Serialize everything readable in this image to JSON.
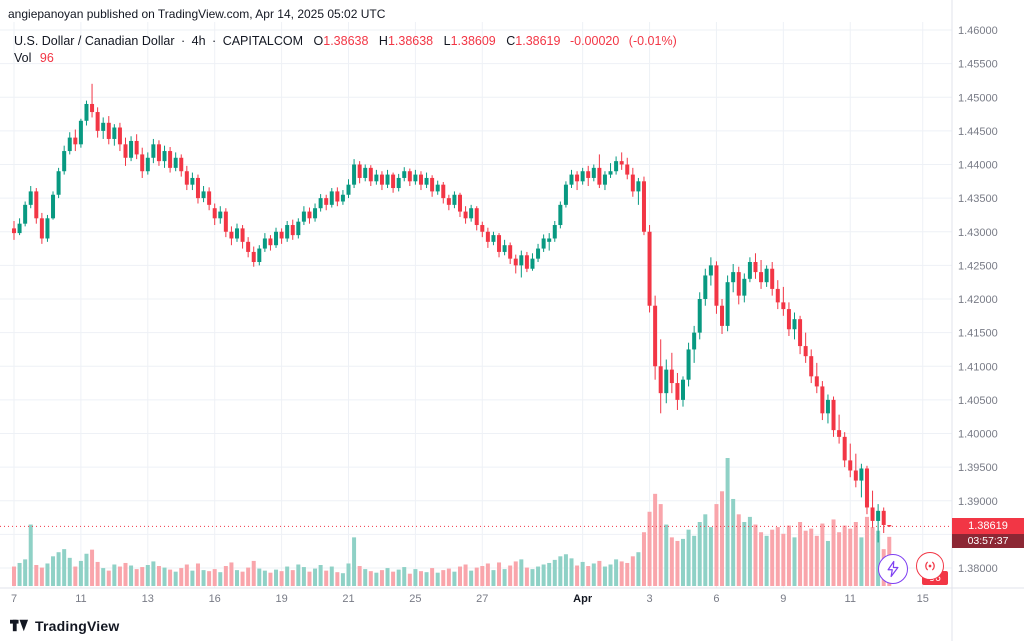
{
  "attribution": {
    "text": "angiepanoyan published on TradingView.com, Apr 14, 2025 05:02 UTC"
  },
  "header": {
    "title": "U.S. Dollar / Canadian Dollar",
    "separator": "·",
    "interval": "4h",
    "exchange": "CAPITALCOM",
    "ohlc": [
      {
        "label": "O",
        "value": "1.38638"
      },
      {
        "label": "H",
        "value": "1.38638"
      },
      {
        "label": "L",
        "value": "1.38609"
      },
      {
        "label": "C",
        "value": "1.38619"
      }
    ],
    "change": "-0.00020",
    "change_pct": "(-0.01%)",
    "vol_label": "Vol",
    "vol_value": "96"
  },
  "price_axis": {
    "last_price": "1.38619",
    "countdown": "03:57:37"
  },
  "overlay": {
    "vol_badge": "96"
  },
  "footer": {
    "brand": "TradingView"
  },
  "colors": {
    "up": "#089981",
    "down": "#f23645",
    "vol_up": "#8fd1c6",
    "vol_down": "#f9a5ab",
    "grid": "#eef1f6",
    "axis_line": "#e0e3eb",
    "axis_text": "#787b86",
    "text": "#131722",
    "badge_price_bg": "#f23645",
    "badge_countdown_bg": "#8c2734",
    "badge_vol_bg": "#f23645",
    "accent_purple": "#7e3ff2"
  },
  "chart_data": {
    "type": "candlestick",
    "symbol": "USDCAD",
    "title": "U.S. Dollar / Canadian Dollar",
    "interval": "4h",
    "exchange": "CAPITALCOM",
    "legend_position": "none",
    "grid": true,
    "price_range": [
      1.38,
      1.46
    ],
    "last_price": 1.38619,
    "last_volume": 96,
    "price_ticks": [
      "1.46000",
      "1.45500",
      "1.45000",
      "1.44500",
      "1.44000",
      "1.43500",
      "1.43000",
      "1.42500",
      "1.42000",
      "1.41500",
      "1.41000",
      "1.40500",
      "1.40000",
      "1.39500",
      "1.39000",
      "1.38500",
      "1.38000"
    ],
    "x_labels": [
      {
        "text": "7",
        "i": 0,
        "major": false
      },
      {
        "text": "11",
        "i": 12,
        "major": false
      },
      {
        "text": "13",
        "i": 24,
        "major": false
      },
      {
        "text": "16",
        "i": 36,
        "major": false
      },
      {
        "text": "19",
        "i": 48,
        "major": false
      },
      {
        "text": "21",
        "i": 60,
        "major": false
      },
      {
        "text": "25",
        "i": 72,
        "major": false
      },
      {
        "text": "27",
        "i": 84,
        "major": false
      },
      {
        "text": "Apr",
        "i": 102,
        "major": true
      },
      {
        "text": "3",
        "i": 114,
        "major": false
      },
      {
        "text": "6",
        "i": 126,
        "major": false
      },
      {
        "text": "9",
        "i": 138,
        "major": false
      },
      {
        "text": "11",
        "i": 150,
        "major": false
      },
      {
        "text": "15",
        "i": 163,
        "major": false
      }
    ],
    "candles": [
      [
        1.4305,
        1.4316,
        1.4288,
        1.4298,
        38
      ],
      [
        1.4298,
        1.432,
        1.4295,
        1.4312,
        45
      ],
      [
        1.4312,
        1.4345,
        1.4308,
        1.434,
        52
      ],
      [
        1.434,
        1.4368,
        1.4335,
        1.436,
        120
      ],
      [
        1.436,
        1.4365,
        1.4312,
        1.432,
        41
      ],
      [
        1.432,
        1.4328,
        1.4282,
        1.429,
        36
      ],
      [
        1.429,
        1.4325,
        1.4285,
        1.432,
        44
      ],
      [
        1.432,
        1.436,
        1.4318,
        1.4355,
        58
      ],
      [
        1.4355,
        1.4395,
        1.435,
        1.439,
        66
      ],
      [
        1.439,
        1.4428,
        1.4385,
        1.442,
        72
      ],
      [
        1.442,
        1.4448,
        1.4415,
        1.444,
        55
      ],
      [
        1.444,
        1.4452,
        1.442,
        1.443,
        38
      ],
      [
        1.443,
        1.4468,
        1.4425,
        1.4465,
        49
      ],
      [
        1.4465,
        1.4495,
        1.4458,
        1.449,
        63
      ],
      [
        1.449,
        1.452,
        1.447,
        1.4478,
        71
      ],
      [
        1.4478,
        1.4485,
        1.444,
        1.445,
        47
      ],
      [
        1.445,
        1.447,
        1.4438,
        1.4462,
        35
      ],
      [
        1.4462,
        1.4472,
        1.443,
        1.4438,
        30
      ],
      [
        1.4438,
        1.446,
        1.4428,
        1.4455,
        42
      ],
      [
        1.4455,
        1.4462,
        1.442,
        1.443,
        38
      ],
      [
        1.443,
        1.444,
        1.4398,
        1.441,
        45
      ],
      [
        1.441,
        1.4442,
        1.4405,
        1.4435,
        40
      ],
      [
        1.4435,
        1.4445,
        1.4408,
        1.4415,
        33
      ],
      [
        1.4415,
        1.4425,
        1.438,
        1.439,
        37
      ],
      [
        1.439,
        1.4418,
        1.4385,
        1.441,
        41
      ],
      [
        1.441,
        1.4438,
        1.4402,
        1.443,
        48
      ],
      [
        1.443,
        1.4436,
        1.4398,
        1.4405,
        39
      ],
      [
        1.4405,
        1.4428,
        1.4395,
        1.442,
        36
      ],
      [
        1.442,
        1.4426,
        1.4388,
        1.4395,
        32
      ],
      [
        1.4395,
        1.4418,
        1.439,
        1.441,
        28
      ],
      [
        1.441,
        1.4415,
        1.4382,
        1.439,
        35
      ],
      [
        1.439,
        1.4398,
        1.4362,
        1.437,
        42
      ],
      [
        1.437,
        1.4388,
        1.4362,
        1.438,
        30
      ],
      [
        1.438,
        1.4385,
        1.4342,
        1.435,
        44
      ],
      [
        1.435,
        1.4368,
        1.4344,
        1.436,
        31
      ],
      [
        1.436,
        1.4366,
        1.4332,
        1.434,
        29
      ],
      [
        1.4335,
        1.4342,
        1.431,
        1.432,
        33
      ],
      [
        1.432,
        1.4338,
        1.4312,
        1.433,
        27
      ],
      [
        1.433,
        1.4335,
        1.4292,
        1.43,
        39
      ],
      [
        1.43,
        1.4308,
        1.428,
        1.429,
        46
      ],
      [
        1.429,
        1.4312,
        1.4285,
        1.4305,
        31
      ],
      [
        1.4305,
        1.431,
        1.4275,
        1.4285,
        28
      ],
      [
        1.4285,
        1.4292,
        1.4262,
        1.427,
        36
      ],
      [
        1.427,
        1.4278,
        1.4248,
        1.4255,
        49
      ],
      [
        1.4255,
        1.428,
        1.425,
        1.4275,
        34
      ],
      [
        1.4275,
        1.4298,
        1.427,
        1.429,
        30
      ],
      [
        1.429,
        1.4295,
        1.4272,
        1.428,
        26
      ],
      [
        1.428,
        1.4306,
        1.4276,
        1.43,
        32
      ],
      [
        1.43,
        1.4305,
        1.4282,
        1.429,
        29
      ],
      [
        1.429,
        1.4316,
        1.4285,
        1.431,
        38
      ],
      [
        1.431,
        1.4318,
        1.4288,
        1.4295,
        31
      ],
      [
        1.4295,
        1.432,
        1.429,
        1.4315,
        42
      ],
      [
        1.4315,
        1.4338,
        1.431,
        1.433,
        37
      ],
      [
        1.433,
        1.4336,
        1.4312,
        1.432,
        28
      ],
      [
        1.432,
        1.4342,
        1.4315,
        1.4335,
        34
      ],
      [
        1.4335,
        1.4356,
        1.433,
        1.435,
        41
      ],
      [
        1.435,
        1.4355,
        1.4332,
        1.434,
        30
      ],
      [
        1.434,
        1.4365,
        1.4336,
        1.436,
        38
      ],
      [
        1.436,
        1.4366,
        1.4338,
        1.4345,
        27
      ],
      [
        1.4345,
        1.4362,
        1.434,
        1.4355,
        25
      ],
      [
        1.4355,
        1.4378,
        1.435,
        1.437,
        44
      ],
      [
        1.437,
        1.4408,
        1.4365,
        1.44,
        95
      ],
      [
        1.44,
        1.4405,
        1.4372,
        1.438,
        39
      ],
      [
        1.438,
        1.44,
        1.4375,
        1.4395,
        33
      ],
      [
        1.4395,
        1.4399,
        1.4368,
        1.4375,
        29
      ],
      [
        1.4375,
        1.4392,
        1.437,
        1.4385,
        26
      ],
      [
        1.4385,
        1.439,
        1.4362,
        1.437,
        31
      ],
      [
        1.437,
        1.4392,
        1.4365,
        1.4385,
        35
      ],
      [
        1.4385,
        1.4388,
        1.4358,
        1.4365,
        28
      ],
      [
        1.4365,
        1.4386,
        1.436,
        1.438,
        32
      ],
      [
        1.438,
        1.4396,
        1.4375,
        1.439,
        37
      ],
      [
        1.439,
        1.4394,
        1.4368,
        1.4375,
        24
      ],
      [
        1.4375,
        1.4392,
        1.437,
        1.4385,
        33
      ],
      [
        1.4385,
        1.439,
        1.4362,
        1.437,
        29
      ],
      [
        1.437,
        1.4388,
        1.4365,
        1.438,
        27
      ],
      [
        1.438,
        1.4384,
        1.4352,
        1.436,
        35
      ],
      [
        1.436,
        1.4376,
        1.4355,
        1.437,
        26
      ],
      [
        1.437,
        1.4374,
        1.4342,
        1.435,
        31
      ],
      [
        1.435,
        1.4355,
        1.4332,
        1.434,
        34
      ],
      [
        1.434,
        1.436,
        1.4335,
        1.4355,
        28
      ],
      [
        1.4355,
        1.4358,
        1.4322,
        1.433,
        38
      ],
      [
        1.433,
        1.4338,
        1.4312,
        1.432,
        42
      ],
      [
        1.432,
        1.434,
        1.4315,
        1.4335,
        30
      ],
      [
        1.4335,
        1.4338,
        1.4302,
        1.431,
        36
      ],
      [
        1.431,
        1.4315,
        1.4292,
        1.43,
        39
      ],
      [
        1.43,
        1.4306,
        1.4276,
        1.4285,
        44
      ],
      [
        1.4285,
        1.43,
        1.428,
        1.4295,
        31
      ],
      [
        1.4295,
        1.4298,
        1.4262,
        1.427,
        46
      ],
      [
        1.427,
        1.4288,
        1.4265,
        1.428,
        33
      ],
      [
        1.428,
        1.4284,
        1.4252,
        1.426,
        40
      ],
      [
        1.426,
        1.4266,
        1.4238,
        1.425,
        48
      ],
      [
        1.425,
        1.4272,
        1.4232,
        1.4265,
        52
      ],
      [
        1.4265,
        1.427,
        1.424,
        1.4245,
        36
      ],
      [
        1.4245,
        1.4268,
        1.4242,
        1.426,
        33
      ],
      [
        1.426,
        1.4282,
        1.4255,
        1.4275,
        38
      ],
      [
        1.4275,
        1.4296,
        1.427,
        1.429,
        42
      ],
      [
        1.4285,
        1.4298,
        1.4272,
        1.429,
        45
      ],
      [
        1.429,
        1.4316,
        1.4285,
        1.431,
        51
      ],
      [
        1.431,
        1.4345,
        1.4305,
        1.434,
        58
      ],
      [
        1.434,
        1.4375,
        1.4336,
        1.437,
        62
      ],
      [
        1.437,
        1.4392,
        1.4365,
        1.4385,
        54
      ],
      [
        1.4385,
        1.439,
        1.4362,
        1.4375,
        40
      ],
      [
        1.4375,
        1.4395,
        1.437,
        1.439,
        47
      ],
      [
        1.439,
        1.4398,
        1.4368,
        1.438,
        39
      ],
      [
        1.438,
        1.44,
        1.4375,
        1.4395,
        44
      ],
      [
        1.4395,
        1.4415,
        1.4365,
        1.437,
        49
      ],
      [
        1.437,
        1.439,
        1.4362,
        1.4385,
        38
      ],
      [
        1.4385,
        1.4402,
        1.438,
        1.439,
        42
      ],
      [
        1.439,
        1.4412,
        1.4385,
        1.4405,
        52
      ],
      [
        1.4405,
        1.4418,
        1.4392,
        1.44,
        48
      ],
      [
        1.44,
        1.441,
        1.4378,
        1.4385,
        45
      ],
      [
        1.4385,
        1.4395,
        1.4352,
        1.436,
        58
      ],
      [
        1.436,
        1.438,
        1.434,
        1.4375,
        66
      ],
      [
        1.4375,
        1.4382,
        1.4295,
        1.43,
        105
      ],
      [
        1.43,
        1.431,
        1.418,
        1.419,
        145
      ],
      [
        1.419,
        1.4205,
        1.408,
        1.41,
        180
      ],
      [
        1.41,
        1.414,
        1.403,
        1.406,
        160
      ],
      [
        1.406,
        1.411,
        1.4045,
        1.4095,
        120
      ],
      [
        1.4095,
        1.412,
        1.406,
        1.4075,
        95
      ],
      [
        1.4075,
        1.409,
        1.4035,
        1.405,
        88
      ],
      [
        1.405,
        1.4085,
        1.404,
        1.408,
        92
      ],
      [
        1.408,
        1.4135,
        1.407,
        1.4125,
        110
      ],
      [
        1.4125,
        1.416,
        1.4105,
        1.415,
        98
      ],
      [
        1.415,
        1.421,
        1.414,
        1.42,
        125
      ],
      [
        1.42,
        1.4245,
        1.419,
        1.4235,
        140
      ],
      [
        1.4235,
        1.4262,
        1.422,
        1.425,
        115
      ],
      [
        1.425,
        1.4256,
        1.4178,
        1.419,
        160
      ],
      [
        1.419,
        1.42,
        1.4148,
        1.416,
        185
      ],
      [
        1.416,
        1.4235,
        1.4152,
        1.4225,
        250
      ],
      [
        1.4225,
        1.4252,
        1.421,
        1.424,
        170
      ],
      [
        1.424,
        1.4248,
        1.4192,
        1.4205,
        140
      ],
      [
        1.4205,
        1.4238,
        1.4195,
        1.423,
        125
      ],
      [
        1.423,
        1.4262,
        1.4225,
        1.4255,
        135
      ],
      [
        1.4255,
        1.4268,
        1.423,
        1.424,
        120
      ],
      [
        1.424,
        1.4258,
        1.4215,
        1.4225,
        105
      ],
      [
        1.4225,
        1.425,
        1.4218,
        1.4245,
        98
      ],
      [
        1.4245,
        1.4255,
        1.4205,
        1.4215,
        110
      ],
      [
        1.4215,
        1.4228,
        1.4185,
        1.4195,
        115
      ],
      [
        1.4195,
        1.4218,
        1.4175,
        1.4185,
        102
      ],
      [
        1.4185,
        1.4195,
        1.4145,
        1.4155,
        118
      ],
      [
        1.4155,
        1.418,
        1.414,
        1.417,
        95
      ],
      [
        1.417,
        1.4175,
        1.4118,
        1.413,
        125
      ],
      [
        1.413,
        1.415,
        1.4105,
        1.4115,
        108
      ],
      [
        1.4115,
        1.4125,
        1.4075,
        1.4085,
        112
      ],
      [
        1.4085,
        1.4105,
        1.406,
        1.407,
        98
      ],
      [
        1.407,
        1.4078,
        1.402,
        1.403,
        122
      ],
      [
        1.403,
        1.4058,
        1.4015,
        1.405,
        88
      ],
      [
        1.405,
        1.4055,
        1.3995,
        1.4005,
        130
      ],
      [
        1.4005,
        1.4028,
        1.3985,
        1.3995,
        105
      ],
      [
        1.3995,
        1.4002,
        1.395,
        1.396,
        118
      ],
      [
        1.396,
        1.3985,
        1.3935,
        1.3945,
        112
      ],
      [
        1.3945,
        1.397,
        1.392,
        1.393,
        125
      ],
      [
        1.393,
        1.3955,
        1.3905,
        1.3948,
        95
      ],
      [
        1.3948,
        1.3952,
        1.388,
        1.389,
        135
      ],
      [
        1.389,
        1.3915,
        1.386,
        1.387,
        115
      ],
      [
        1.387,
        1.3895,
        1.3838,
        1.3885,
        108
      ],
      [
        1.3885,
        1.389,
        1.3852,
        1.3864,
        72
      ],
      [
        1.38638,
        1.38638,
        1.38609,
        1.38619,
        96
      ]
    ]
  }
}
